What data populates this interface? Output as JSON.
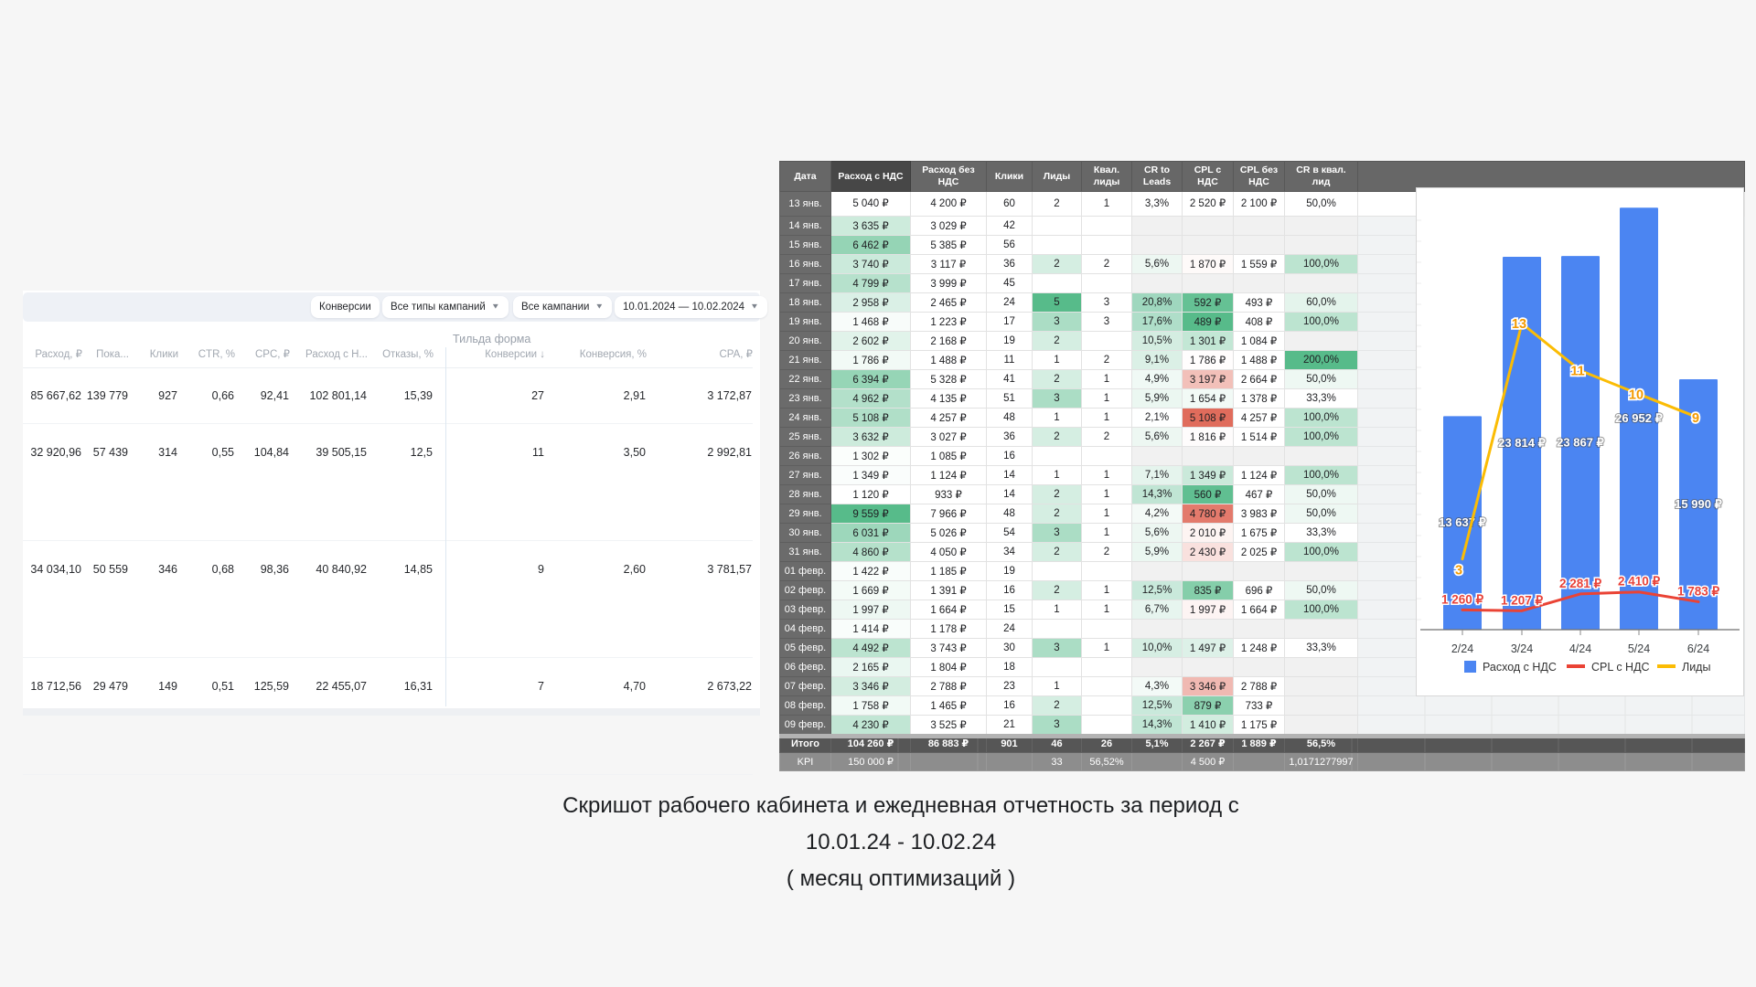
{
  "caption": {
    "line1": "Скришот рабочего кабинета и ежедневная отчетность за период с",
    "line2": "10.01.24 - 10.02.24",
    "line3": "( месяц оптимизаций )"
  },
  "left_panel": {
    "filters": {
      "metric_chip": "Конверсии",
      "campaign_types": "Все типы кампаний",
      "campaigns": "Все кампании",
      "date_range": "10.01.2024 — 10.02.2024"
    },
    "group_header": "Тильда форма",
    "columns": [
      "Расход, ₽",
      "Пока...",
      "Клики",
      "CTR, %",
      "CPC, ₽",
      "Расход с Н...",
      "Отказы, %",
      "Конверсии ↓",
      "Конверсия, %",
      "CPA, ₽"
    ],
    "rows": [
      [
        "85 667,62",
        "139 779",
        "927",
        "0,66",
        "92,41",
        "102 801,14",
        "15,39",
        "27",
        "2,91",
        "3 172,87"
      ],
      [
        "32 920,96",
        "57 439",
        "314",
        "0,55",
        "104,84",
        "39 505,15",
        "12,5",
        "11",
        "3,50",
        "2 992,81"
      ],
      [
        "34 034,10",
        "50 559",
        "346",
        "0,68",
        "98,36",
        "40 840,92",
        "14,85",
        "9",
        "2,60",
        "3 781,57"
      ],
      [
        "18 712,56",
        "29 479",
        "149",
        "0,51",
        "125,59",
        "22 455,07",
        "16,31",
        "7",
        "4,70",
        "2 673,22"
      ]
    ]
  },
  "daily_table": {
    "columns": [
      "Дата",
      "Расход с НДС",
      "Расход без НДС",
      "Клики",
      "Лиды",
      "Квал. лиды",
      "CR to Leads",
      "CPL с НДС",
      "CPL без НДС",
      "CR в квал. лид"
    ],
    "rows": [
      {
        "date": "13 янв.",
        "cells": [
          "5 040 ₽",
          "4 200 ₽",
          "60",
          "2",
          "1",
          "3,3%",
          "2 520 ₽",
          "2 100 ₽",
          "50,0%"
        ]
      },
      {
        "date": "14 янв.",
        "cells": [
          "3 635 ₽",
          "3 029 ₽",
          "42",
          "",
          "",
          "",
          "",
          "",
          ""
        ]
      },
      {
        "date": "15 янв.",
        "cells": [
          "6 462 ₽",
          "5 385 ₽",
          "56",
          "",
          "",
          "",
          "",
          "",
          ""
        ]
      },
      {
        "date": "16 янв.",
        "cells": [
          "3 740 ₽",
          "3 117 ₽",
          "36",
          "2",
          "2",
          "5,6%",
          "1 870 ₽",
          "1 559 ₽",
          "100,0%"
        ]
      },
      {
        "date": "17 янв.",
        "cells": [
          "4 799 ₽",
          "3 999 ₽",
          "45",
          "",
          "",
          "",
          "",
          "",
          ""
        ]
      },
      {
        "date": "18 янв.",
        "cells": [
          "2 958 ₽",
          "2 465 ₽",
          "24",
          "5",
          "3",
          "20,8%",
          "592 ₽",
          "493 ₽",
          "60,0%"
        ]
      },
      {
        "date": "19 янв.",
        "cells": [
          "1 468 ₽",
          "1 223 ₽",
          "17",
          "3",
          "3",
          "17,6%",
          "489 ₽",
          "408 ₽",
          "100,0%"
        ]
      },
      {
        "date": "20 янв.",
        "cells": [
          "2 602 ₽",
          "2 168 ₽",
          "19",
          "2",
          "",
          "10,5%",
          "1 301 ₽",
          "1 084 ₽",
          ""
        ]
      },
      {
        "date": "21 янв.",
        "cells": [
          "1 786 ₽",
          "1 488 ₽",
          "11",
          "1",
          "2",
          "9,1%",
          "1 786 ₽",
          "1 488 ₽",
          "200,0%"
        ]
      },
      {
        "date": "22 янв.",
        "cells": [
          "6 394 ₽",
          "5 328 ₽",
          "41",
          "2",
          "1",
          "4,9%",
          "3 197 ₽",
          "2 664 ₽",
          "50,0%"
        ]
      },
      {
        "date": "23 янв.",
        "cells": [
          "4 962 ₽",
          "4 135 ₽",
          "51",
          "3",
          "1",
          "5,9%",
          "1 654 ₽",
          "1 378 ₽",
          "33,3%"
        ]
      },
      {
        "date": "24 янв.",
        "cells": [
          "5 108 ₽",
          "4 257 ₽",
          "48",
          "1",
          "1",
          "2,1%",
          "5 108 ₽",
          "4 257 ₽",
          "100,0%"
        ]
      },
      {
        "date": "25 янв.",
        "cells": [
          "3 632 ₽",
          "3 027 ₽",
          "36",
          "2",
          "2",
          "5,6%",
          "1 816 ₽",
          "1 514 ₽",
          "100,0%"
        ]
      },
      {
        "date": "26 янв.",
        "cells": [
          "1 302 ₽",
          "1 085 ₽",
          "16",
          "",
          "",
          "",
          "",
          "",
          ""
        ]
      },
      {
        "date": "27 янв.",
        "cells": [
          "1 349 ₽",
          "1 124 ₽",
          "14",
          "1",
          "1",
          "7,1%",
          "1 349 ₽",
          "1 124 ₽",
          "100,0%"
        ]
      },
      {
        "date": "28 янв.",
        "cells": [
          "1 120 ₽",
          "933 ₽",
          "14",
          "2",
          "1",
          "14,3%",
          "560 ₽",
          "467 ₽",
          "50,0%"
        ]
      },
      {
        "date": "29 янв.",
        "cells": [
          "9 559 ₽",
          "7 966 ₽",
          "48",
          "2",
          "1",
          "4,2%",
          "4 780 ₽",
          "3 983 ₽",
          "50,0%"
        ]
      },
      {
        "date": "30 янв.",
        "cells": [
          "6 031 ₽",
          "5 026 ₽",
          "54",
          "3",
          "1",
          "5,6%",
          "2 010 ₽",
          "1 675 ₽",
          "33,3%"
        ]
      },
      {
        "date": "31 янв.",
        "cells": [
          "4 860 ₽",
          "4 050 ₽",
          "34",
          "2",
          "2",
          "5,9%",
          "2 430 ₽",
          "2 025 ₽",
          "100,0%"
        ]
      },
      {
        "date": "01 февр.",
        "cells": [
          "1 422 ₽",
          "1 185 ₽",
          "19",
          "",
          "",
          "",
          "",
          "",
          ""
        ]
      },
      {
        "date": "02 февр.",
        "cells": [
          "1 669 ₽",
          "1 391 ₽",
          "16",
          "2",
          "1",
          "12,5%",
          "835 ₽",
          "696 ₽",
          "50,0%"
        ]
      },
      {
        "date": "03 февр.",
        "cells": [
          "1 997 ₽",
          "1 664 ₽",
          "15",
          "1",
          "1",
          "6,7%",
          "1 997 ₽",
          "1 664 ₽",
          "100,0%"
        ]
      },
      {
        "date": "04 февр.",
        "cells": [
          "1 414 ₽",
          "1 178 ₽",
          "24",
          "",
          "",
          "",
          "",
          "",
          ""
        ]
      },
      {
        "date": "05 февр.",
        "cells": [
          "4 492 ₽",
          "3 743 ₽",
          "30",
          "3",
          "1",
          "10,0%",
          "1 497 ₽",
          "1 248 ₽",
          "33,3%"
        ]
      },
      {
        "date": "06 февр.",
        "cells": [
          "2 165 ₽",
          "1 804 ₽",
          "18",
          "",
          "",
          "",
          "",
          "",
          ""
        ]
      },
      {
        "date": "07 февр.",
        "cells": [
          "3 346 ₽",
          "2 788 ₽",
          "23",
          "1",
          "",
          "4,3%",
          "3 346 ₽",
          "2 788 ₽",
          ""
        ]
      },
      {
        "date": "08 февр.",
        "cells": [
          "1 758 ₽",
          "1 465 ₽",
          "16",
          "2",
          "",
          "12,5%",
          "879 ₽",
          "733 ₽",
          ""
        ]
      },
      {
        "date": "09 февр.",
        "cells": [
          "4 230 ₽",
          "3 525 ₽",
          "21",
          "3",
          "",
          "14,3%",
          "1 410 ₽",
          "1 175 ₽",
          ""
        ]
      }
    ],
    "totals_row": {
      "date": "Итого",
      "cells": [
        "104 260 ₽",
        "86 883 ₽",
        "901",
        "46",
        "26",
        "5,1%",
        "2 267 ₽",
        "1 889 ₽",
        "56,5%"
      ]
    },
    "kpi_row": {
      "date": "KPI",
      "cells": [
        "150 000 ₽",
        "",
        "",
        "33",
        "56,52%",
        "",
        "4 500 ₽",
        "",
        "1,0171277997"
      ]
    },
    "colors": {
      "scale_green": "#57bb8a",
      "scale_red": "#e06c5c",
      "header_bg": "#676767"
    }
  },
  "chart_data": {
    "type": "bar",
    "categories": [
      "2/24",
      "3/24",
      "4/24",
      "5/24",
      "6/24"
    ],
    "series": [
      {
        "name": "Расход с НДС",
        "kind": "bar",
        "color": "#4b85f2",
        "values": [
          13637,
          23814,
          23867,
          26952,
          15990
        ],
        "labels": [
          "13 637 ₽",
          "23 814 ₽",
          "23 867 ₽",
          "26 952 ₽",
          "15 990 ₽"
        ]
      },
      {
        "name": "CPL с НДС",
        "kind": "line",
        "color": "#ea4335",
        "values": [
          1260,
          1207,
          2281,
          2410,
          1783
        ],
        "labels": [
          "1 260 ₽",
          "1 207 ₽",
          "2 281 ₽",
          "2 410 ₽",
          "1 783 ₽"
        ]
      },
      {
        "name": "Лиды",
        "kind": "line",
        "color": "#fbbc04",
        "values": [
          3,
          13,
          11,
          10,
          9
        ],
        "labels": [
          "3",
          "13",
          "11",
          "10",
          "9"
        ]
      }
    ],
    "ylim": [
      0,
      28000
    ],
    "grid": false,
    "legend_position": "bottom"
  }
}
